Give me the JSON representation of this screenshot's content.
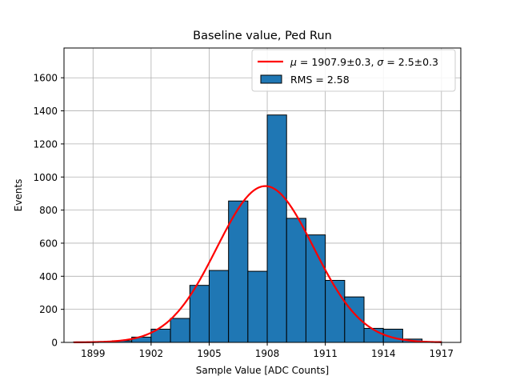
{
  "chart_data": {
    "type": "bar",
    "title": "Baseline value, Ped Run",
    "xlabel": "Sample Value [ADC Counts]",
    "ylabel": "Events",
    "xlim": [
      1897.5,
      1918
    ],
    "ylim": [
      0,
      1780
    ],
    "xticks": [
      1899,
      1902,
      1905,
      1908,
      1911,
      1914,
      1917
    ],
    "yticks": [
      0,
      200,
      400,
      600,
      800,
      1000,
      1200,
      1400,
      1600
    ],
    "grid": true,
    "legend_position": "top-right",
    "bar_color": "#1f77b4",
    "fit_color": "#ff0000",
    "bins": [
      {
        "x0": 1898,
        "x1": 1899,
        "value": 3
      },
      {
        "x0": 1899,
        "x1": 1900,
        "value": 5
      },
      {
        "x0": 1900,
        "x1": 1901,
        "value": 10
      },
      {
        "x0": 1901,
        "x1": 1902,
        "value": 32
      },
      {
        "x0": 1902,
        "x1": 1903,
        "value": 80
      },
      {
        "x0": 1903,
        "x1": 1904,
        "value": 145
      },
      {
        "x0": 1904,
        "x1": 1905,
        "value": 345
      },
      {
        "x0": 1905,
        "x1": 1906,
        "value": 435
      },
      {
        "x0": 1906,
        "x1": 1907,
        "value": 855
      },
      {
        "x0": 1907,
        "x1": 1908,
        "value": 430
      },
      {
        "x0": 1908,
        "x1": 1909,
        "value": 1375
      },
      {
        "x0": 1909,
        "x1": 1910,
        "value": 750
      },
      {
        "x0": 1910,
        "x1": 1911,
        "value": 650
      },
      {
        "x0": 1911,
        "x1": 1912,
        "value": 375
      },
      {
        "x0": 1912,
        "x1": 1913,
        "value": 275
      },
      {
        "x0": 1913,
        "x1": 1914,
        "value": 85
      },
      {
        "x0": 1914,
        "x1": 1915,
        "value": 80
      },
      {
        "x0": 1915,
        "x1": 1916,
        "value": 20
      },
      {
        "x0": 1916,
        "x1": 1917,
        "value": 5
      }
    ],
    "fit": {
      "mu": 1907.9,
      "sigma": 2.5,
      "amplitude": 945,
      "x_range": [
        1898,
        1917
      ]
    },
    "legend": {
      "fit_label_parts": [
        "μ",
        " = 1907.9±0.3, ",
        "σ",
        " = 2.5±0.3"
      ],
      "hist_label": "RMS = 2.58"
    }
  }
}
